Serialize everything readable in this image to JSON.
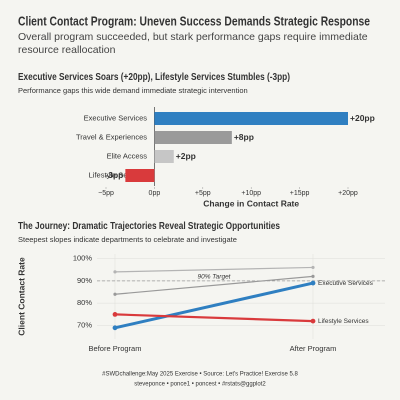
{
  "title": "Client Contact Program: Uneven Success Demands Strategic Response",
  "subtitle": "Overall program succeeded, but stark performance gaps require immediate resource reallocation",
  "caption": [
    "#SWDchallenge:May 2025 Exercise • Source: Let's Practice! Exercise 5.8",
    "steveponce • ponce1 • poncest • #rstats@ggplot2"
  ],
  "chart_data": [
    {
      "type": "bar",
      "orientation": "horizontal",
      "title": "Executive Services Soars (+20pp), Lifestyle Services Stumbles (-3pp)",
      "subtitle": "Performance gaps this wide demand immediate strategic intervention",
      "categories": [
        "Executive Services",
        "Travel & Experiences",
        "Elite Access",
        "Lifestyle Services"
      ],
      "values": [
        20,
        8,
        2,
        -3
      ],
      "value_labels": [
        "+20pp",
        "+8pp",
        "+2pp",
        "-3pp"
      ],
      "colors": [
        "#2f7fc1",
        "#9a9a9a",
        "#c6c6c6",
        "#d93a3c"
      ],
      "xlabel": "Change in Contact Rate",
      "xlim": [
        -5,
        20
      ],
      "xticks": [
        {
          "value": -5,
          "label": "−5pp"
        },
        {
          "value": 0,
          "label": "0pp"
        },
        {
          "value": 5,
          "label": "+5pp"
        },
        {
          "value": 10,
          "label": "+10pp"
        },
        {
          "value": 15,
          "label": "+15pp"
        },
        {
          "value": 20,
          "label": "+20pp"
        }
      ]
    },
    {
      "type": "line",
      "title": "The Journey: Dramatic Trajectories Reveal Strategic Opportunities",
      "subtitle": "Steepest slopes indicate departments to celebrate and investigate",
      "ylabel": "Client Contact Rate",
      "categories": [
        "Before Program",
        "After Program"
      ],
      "series": [
        {
          "color": "#b4b4b4",
          "values": [
            94,
            96
          ]
        },
        {
          "color": "#999999",
          "values": [
            84,
            92
          ]
        },
        {
          "name": "Executive Services",
          "color": "#2f7fc1",
          "values": [
            69,
            89
          ]
        },
        {
          "name": "Lifestyle Services",
          "color": "#d93a3c",
          "values": [
            75,
            72
          ]
        }
      ],
      "reference": {
        "value": 90,
        "label": "90% Target"
      },
      "ylim": [
        64,
        102
      ],
      "yticks": [
        {
          "value": 70,
          "label": "70%"
        },
        {
          "value": 80,
          "label": "80%"
        },
        {
          "value": 90,
          "label": "90%"
        },
        {
          "value": 100,
          "label": "100%"
        }
      ],
      "grid": true
    }
  ]
}
